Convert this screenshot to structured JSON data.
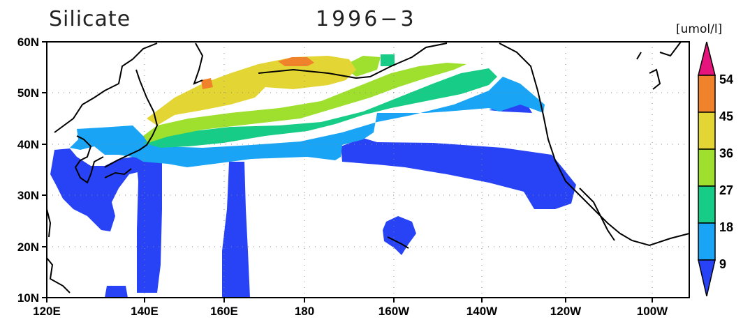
{
  "map": {
    "variable_title": "Silicate",
    "date_title": "1996−3",
    "units": "[umol/l]",
    "lat_labels": [
      "60N",
      "50N",
      "40N",
      "30N",
      "20N",
      "10N"
    ],
    "lon_labels": [
      "120E",
      "140E",
      "160E",
      "180",
      "160W",
      "140W",
      "120W",
      "100W"
    ]
  },
  "colorbar": {
    "labels": [
      "54",
      "45",
      "36",
      "27",
      "18",
      "9"
    ],
    "colors": [
      "#e6157e",
      "#f0822b",
      "#e3d634",
      "#9ee02d",
      "#17cc86",
      "#1aa4f5",
      "#2743f5"
    ]
  },
  "fill_colors": {
    "band_9_18": "#1aa4f5",
    "band_below_9": "#2743f5",
    "band_18_27": "#17cc86",
    "band_27_36": "#9ee02d",
    "band_36_45": "#e3d634",
    "band_45_54": "#f0822b"
  }
}
